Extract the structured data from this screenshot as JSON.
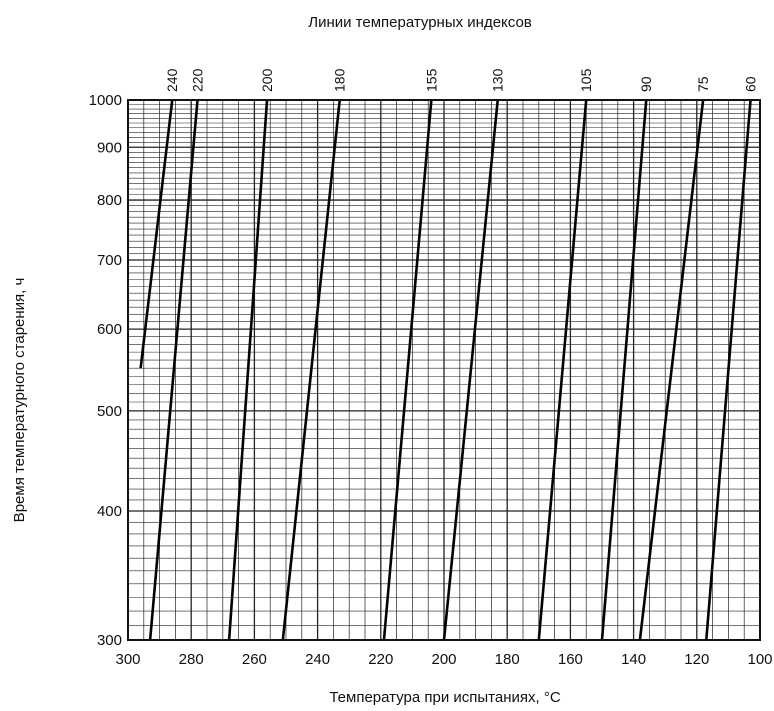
{
  "chart_data": {
    "type": "line",
    "title": "Линии температурных индексов",
    "xlabel": "Температура при испытаниях, °С",
    "ylabel": "Время температурного старения, ч",
    "x_axis": {
      "min": 300,
      "max": 100,
      "reversed": true,
      "scale": "linear",
      "ticks": [
        300,
        280,
        260,
        240,
        220,
        200,
        180,
        160,
        140,
        120,
        100
      ]
    },
    "y_axis": {
      "min": 300,
      "max": 1000,
      "scale": "log",
      "ticks": [
        300,
        400,
        500,
        600,
        700,
        800,
        900,
        1000
      ]
    },
    "grid": true,
    "series": [
      {
        "name": "240",
        "x": [
          296,
          286
        ],
        "y": [
          550,
          1000
        ]
      },
      {
        "name": "220",
        "x": [
          293,
          278
        ],
        "y": [
          300,
          1000
        ]
      },
      {
        "name": "200",
        "x": [
          268,
          256
        ],
        "y": [
          300,
          1000
        ]
      },
      {
        "name": "180",
        "x": [
          251,
          233
        ],
        "y": [
          300,
          1000
        ]
      },
      {
        "name": "155",
        "x": [
          219,
          204
        ],
        "y": [
          300,
          1000
        ]
      },
      {
        "name": "130",
        "x": [
          200,
          183
        ],
        "y": [
          300,
          1000
        ]
      },
      {
        "name": "105",
        "x": [
          170,
          155
        ],
        "y": [
          300,
          1000
        ]
      },
      {
        "name": "90",
        "x": [
          150,
          136
        ],
        "y": [
          300,
          1000
        ]
      },
      {
        "name": "75",
        "x": [
          138,
          118
        ],
        "y": [
          300,
          1000
        ]
      },
      {
        "name": "60",
        "x": [
          117,
          103
        ],
        "y": [
          300,
          1000
        ]
      }
    ]
  }
}
